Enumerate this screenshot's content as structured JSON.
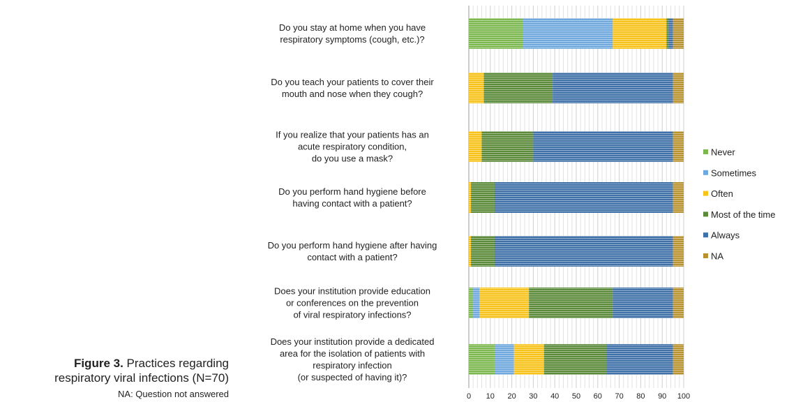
{
  "chart_data": {
    "type": "stacked_barh",
    "caption_label": "Figure 3.",
    "caption": "Practices regarding\nrespiratory viral infections (N=70)",
    "note": "NA: Question not answered",
    "categories": [
      "Do you stay at home when you have\nrespiratory symptoms (cough, etc.)?",
      "Do you teach your patients to cover their\nmouth and nose when they cough?",
      "If you realize that your patients has an\nacute respiratory condition,\ndo you use a mask?",
      "Do you perform hand hygiene before\nhaving contact with a patient?",
      "Do you perform hand hygiene after having\ncontact with a patient?",
      "Does your institution provide education\nor conferences on the prevention\nof viral respiratory infections?",
      "Does your institution provide a dedicated\narea for the isolation of patients with\nrespiratory infection\n(or suspected of having it)?"
    ],
    "series": [
      {
        "name": "Never",
        "color": "#7cb84f",
        "values": [
          25,
          0,
          0,
          0,
          0,
          2,
          12
        ]
      },
      {
        "name": "Sometimes",
        "color": "#6fa8dc",
        "values": [
          42,
          0,
          0,
          0,
          0,
          3,
          9
        ]
      },
      {
        "name": "Often",
        "color": "#f7c31b",
        "values": [
          25,
          7,
          6,
          1,
          1,
          23,
          14
        ]
      },
      {
        "name": "Most of the time",
        "color": "#5b8a3a",
        "values": [
          1,
          32,
          24,
          11,
          11,
          39,
          29
        ]
      },
      {
        "name": "Always",
        "color": "#3f70a8",
        "values": [
          2,
          56,
          65,
          83,
          83,
          28,
          31
        ]
      },
      {
        "name": "NA",
        "color": "#b8922e",
        "values": [
          5,
          5,
          5,
          5,
          5,
          5,
          5
        ]
      }
    ],
    "xlim": [
      0,
      100
    ],
    "xticks": [
      0,
      10,
      20,
      30,
      40,
      50,
      60,
      70,
      80,
      90,
      100
    ],
    "grid": true,
    "legend": "right"
  }
}
